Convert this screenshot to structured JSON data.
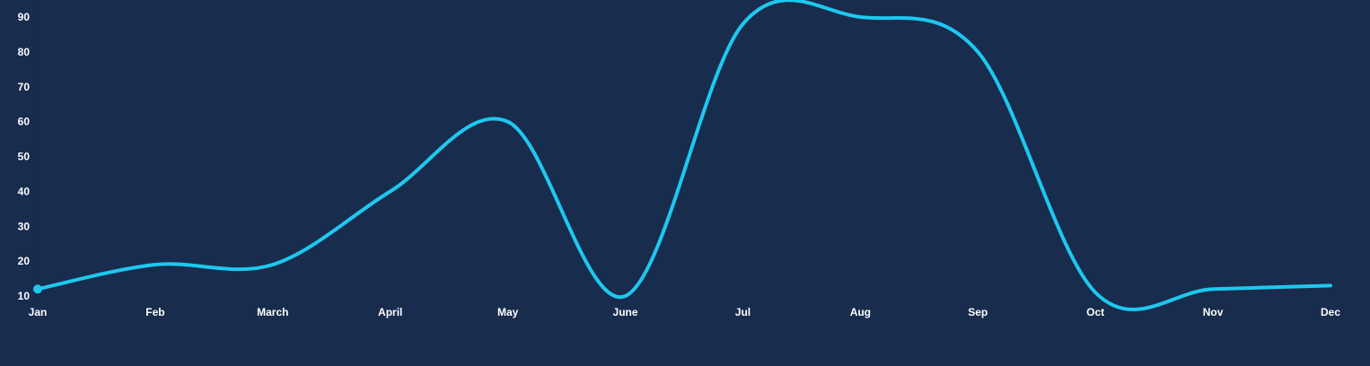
{
  "colors": {
    "background": "#182c4e",
    "line": "#1ec8ee",
    "axis_text": "#ffffff",
    "axis_line": "#132640"
  },
  "chart_data": {
    "type": "line",
    "categories": [
      "Jan",
      "Feb",
      "March",
      "April",
      "May",
      "June",
      "Jul",
      "Aug",
      "Sep",
      "Oct",
      "Nov",
      "Dec"
    ],
    "series": [
      {
        "values": [
          12,
          19,
          19,
          40,
          60,
          10,
          88,
          90,
          80,
          11,
          12,
          13
        ]
      }
    ],
    "yticks": [
      10,
      20,
      30,
      40,
      50,
      60,
      70,
      80,
      90
    ],
    "ylim": [
      10,
      90
    ],
    "title": "",
    "xlabel": "",
    "ylabel": "",
    "grid": false,
    "legend": "none",
    "smooth": true
  }
}
